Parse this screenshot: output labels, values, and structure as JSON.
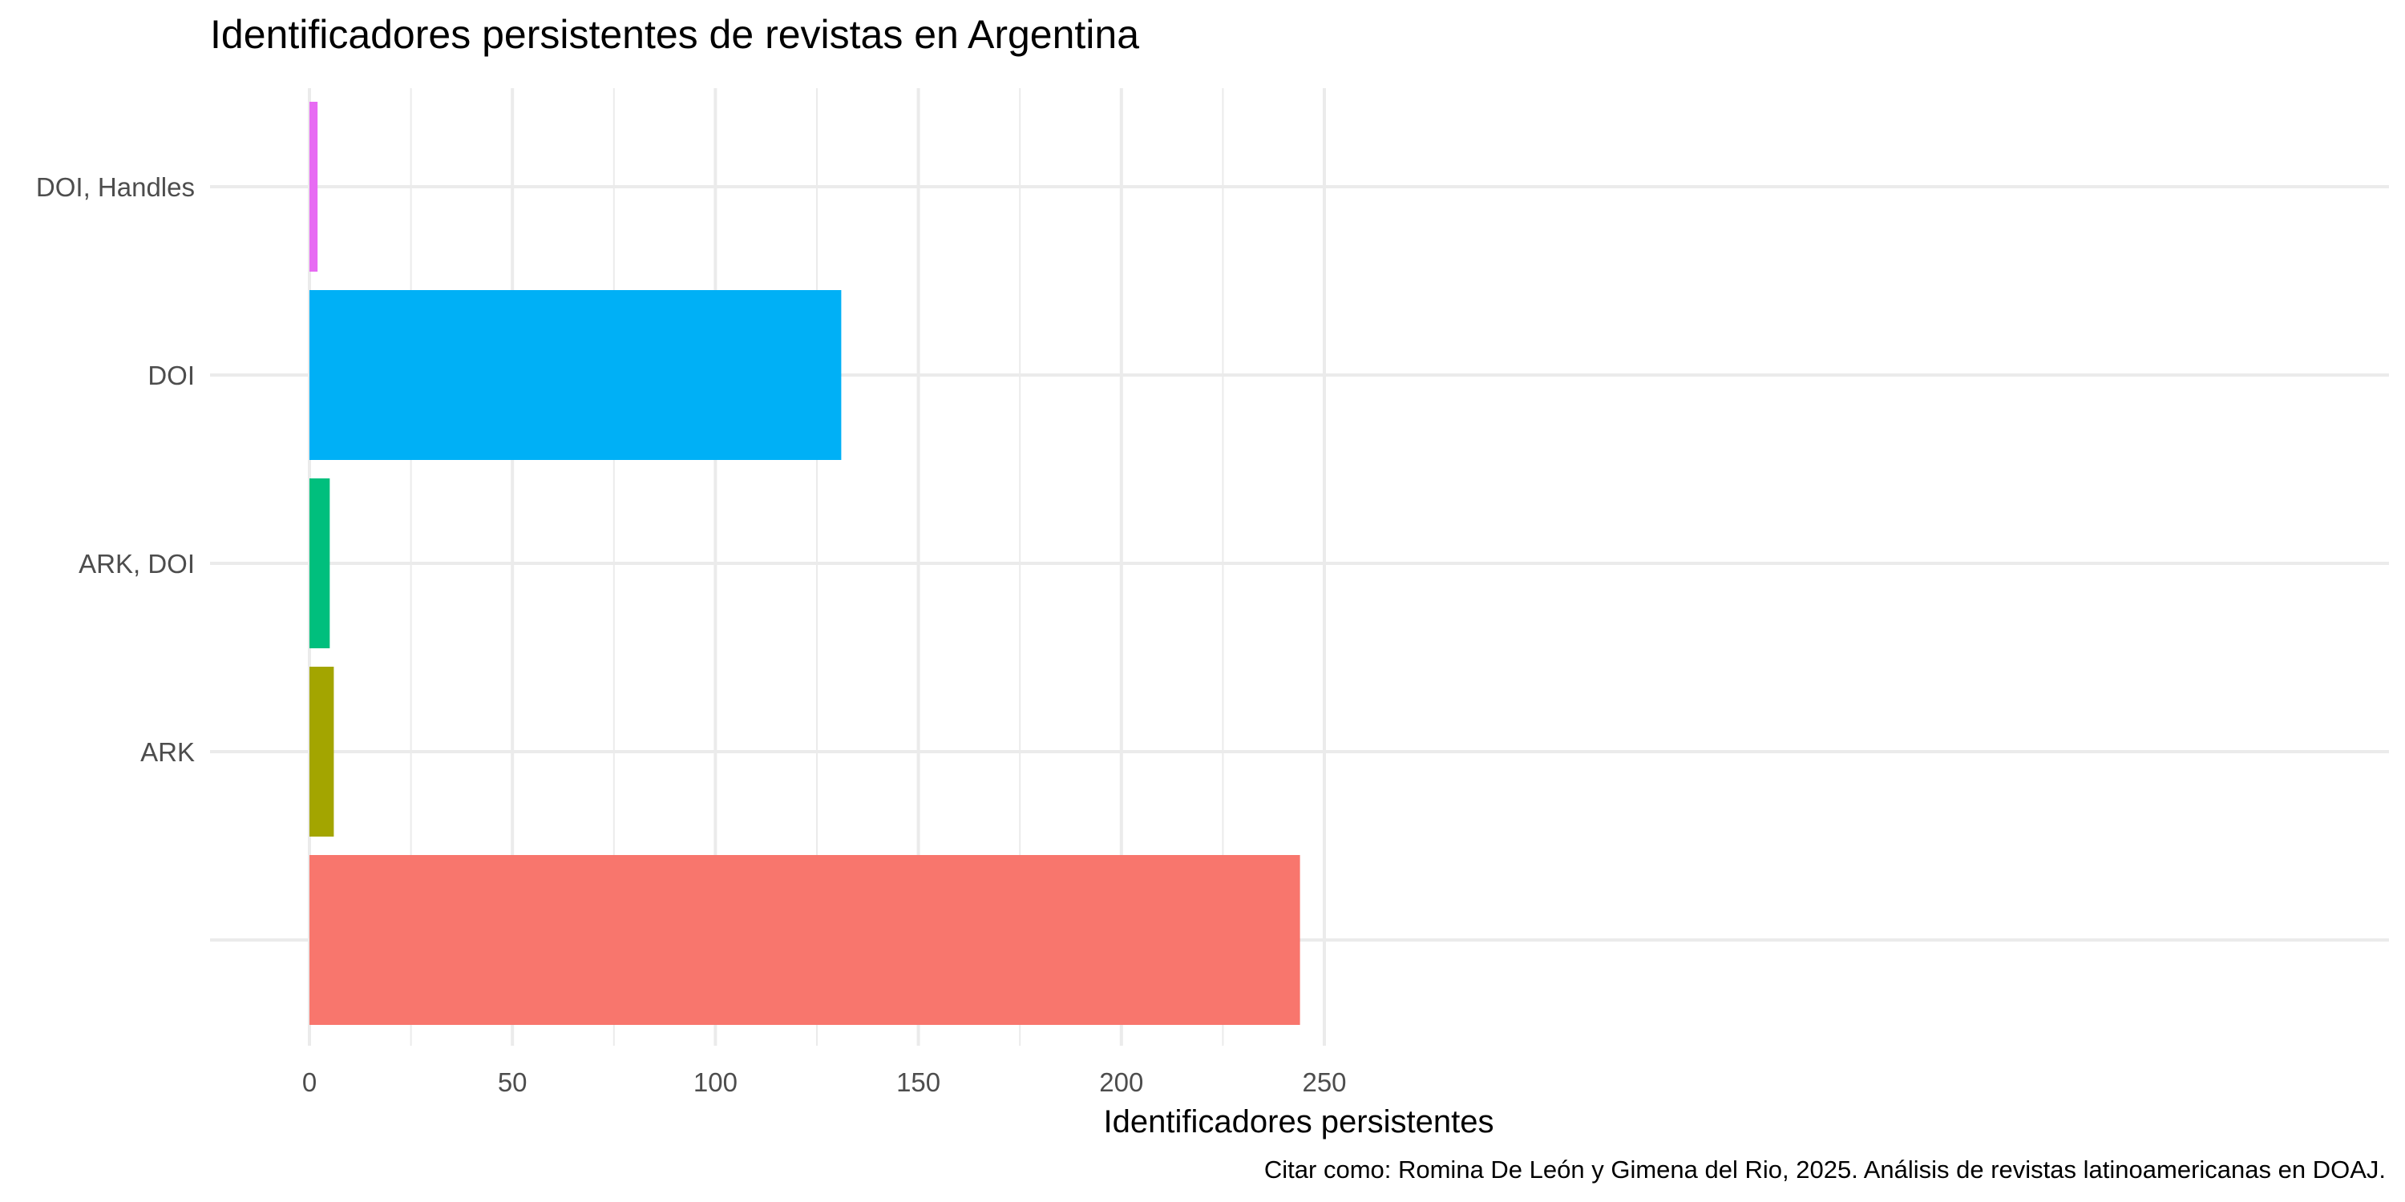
{
  "chart_data": {
    "type": "bar",
    "orientation": "horizontal",
    "title": "Identificadores persistentes de revistas en Argentina",
    "xlabel": "Identificadores persistentes",
    "ylabel": "",
    "caption": "Citar como: Romina De León y Gimena del Rio, 2025. Análisis de revistas latinoamericanas en DOAJ.",
    "categories": [
      "",
      "ARK",
      "ARK, DOI",
      "DOI",
      "DOI, Handles"
    ],
    "values": [
      244,
      6,
      5,
      131,
      2
    ],
    "colors": [
      "#F8766D",
      "#A3A500",
      "#00BF7D",
      "#00B0F6",
      "#E76BF3"
    ],
    "xlim": [
      0,
      250
    ],
    "xticks": [
      0,
      50,
      100,
      150,
      200,
      250
    ],
    "grid": true,
    "legend": "none"
  }
}
